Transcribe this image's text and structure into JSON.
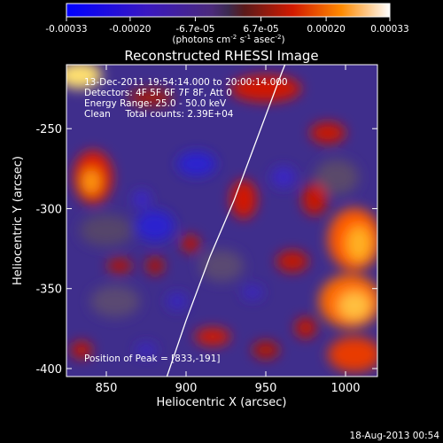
{
  "colorbar": {
    "ticks": [
      "-0.00033",
      "-0.00020",
      "-6.7e-05",
      "6.7e-05",
      "0.00020",
      "0.00033"
    ],
    "tick_values": [
      -0.00033,
      -0.0002,
      -6.7e-05,
      6.7e-05,
      0.0002,
      0.00033
    ],
    "units_prefix": "(photons cm",
    "units_exp1": "-2",
    "units_mid": " s",
    "units_exp2": "-1",
    "units_mid2": " asec",
    "units_exp3": "-2",
    "units_suffix": ")",
    "range": [
      -0.00033,
      0.00033
    ]
  },
  "chart_data": {
    "type": "heatmap",
    "title": "Reconstructed RHESSI Image",
    "xlabel": "Heliocentric X (arcsec)",
    "ylabel": "Heliocentric Y (arcsec)",
    "xlim": [
      825,
      1020
    ],
    "ylim": [
      -405,
      -210
    ],
    "xticks": [
      850,
      900,
      950,
      1000
    ],
    "yticks": [
      -400,
      -350,
      -300,
      -250
    ],
    "annotations": [
      "13-Dec-2011 19:54:14.000 to 20:00:14.000",
      "Detectors: 4F 5F 6F 7F 8F, Att 0",
      "Energy Range: 25.0 - 50.0 keV",
      "Clean     Total counts: 2.39E+04"
    ],
    "peak_label": "Position of Peak = [833,-191]",
    "peak": [
      833,
      -191
    ],
    "limb_arc": [
      [
        888,
        -405
      ],
      [
        900,
        -370
      ],
      [
        915,
        -330
      ],
      [
        930,
        -295
      ],
      [
        945,
        -255
      ],
      [
        960,
        -215
      ],
      [
        962,
        -210
      ]
    ]
  },
  "footer": {
    "timestamp": "18-Aug-2013 00:54"
  }
}
